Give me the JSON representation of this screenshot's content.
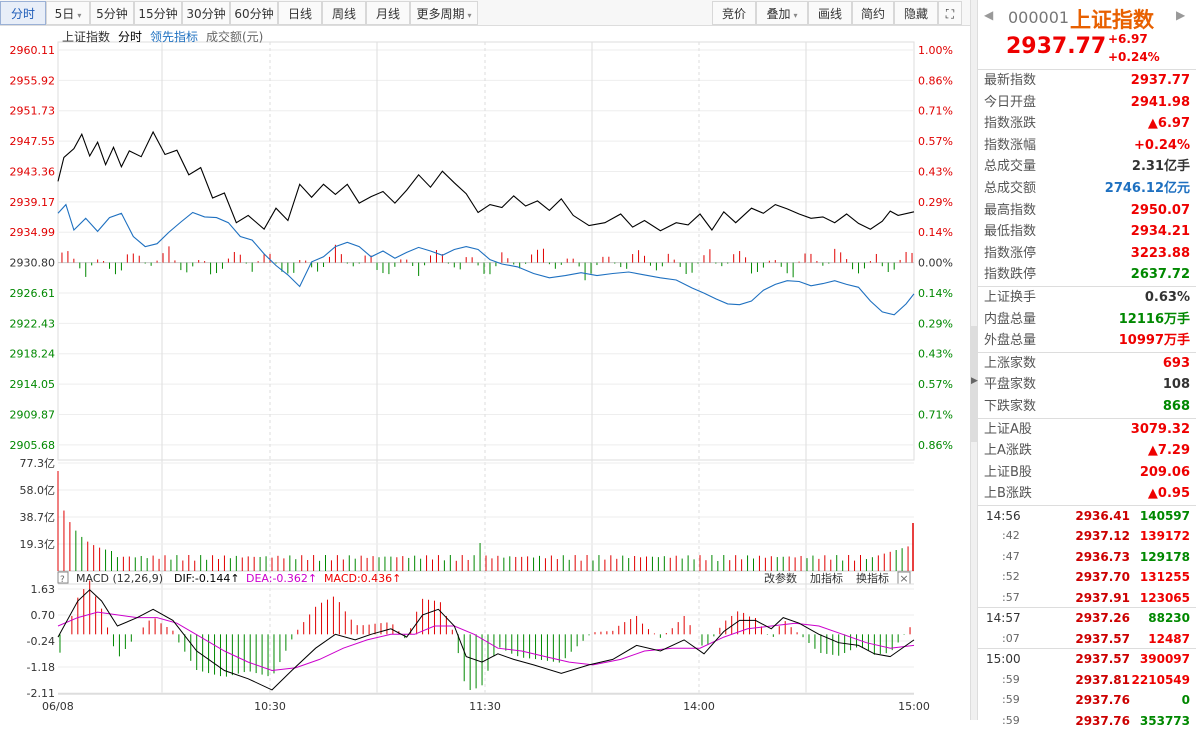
{
  "toolbar": {
    "periods": [
      "分时",
      "5日",
      "5分钟",
      "15分钟",
      "30分钟",
      "60分钟",
      "日线",
      "周线",
      "月线",
      "更多周期"
    ],
    "tools": [
      "竞价",
      "叠加",
      "画线",
      "简约",
      "隐藏"
    ]
  },
  "legend": {
    "name": "上证指数",
    "mode": "分时",
    "leading": "领先指标",
    "volume": "成交额(元)"
  },
  "price_axis": {
    "left": [
      "2960.11",
      "2955.92",
      "2951.73",
      "2947.55",
      "2943.36",
      "2939.17",
      "2934.99",
      "2930.80",
      "2926.61",
      "2922.43",
      "2918.24",
      "2914.05",
      "2909.87",
      "2905.68"
    ],
    "right": [
      "1.00%",
      "0.86%",
      "0.71%",
      "0.57%",
      "0.43%",
      "0.29%",
      "0.14%",
      "0.00%",
      "0.14%",
      "0.29%",
      "0.43%",
      "0.57%",
      "0.71%",
      "0.86%"
    ]
  },
  "volume_axis": [
    "77.3亿",
    "58.0亿",
    "38.7亿",
    "19.3亿"
  ],
  "macd": {
    "title": "MACD (12,26,9)",
    "dif": "DIF:-0.144↑",
    "dea": "DEA:-0.362↑",
    "macd": "MACD:0.436↑",
    "links": [
      "改参数",
      "加指标",
      "换指标"
    ],
    "axis": [
      "1.63",
      "0.70",
      "-0.24",
      "-1.18",
      "-2.11"
    ]
  },
  "time_axis": [
    "06/08",
    "10:30",
    "11:30",
    "14:00",
    "15:00"
  ],
  "quote": {
    "code": "000001",
    "name": "上证指数",
    "price": "2937.77",
    "change": "+6.97",
    "pct": "+0.24%"
  },
  "stats1": [
    {
      "k": "最新指数",
      "v": "2937.77",
      "c": "red"
    },
    {
      "k": "今日开盘",
      "v": "2941.98",
      "c": "red"
    },
    {
      "k": "指数涨跌",
      "v": "▲6.97",
      "c": "red"
    },
    {
      "k": "指数涨幅",
      "v": "+0.24%",
      "c": "red"
    },
    {
      "k": "总成交量",
      "v": "2.31亿手",
      "c": "black"
    },
    {
      "k": "总成交额",
      "v": "2746.12亿元",
      "c": "blue"
    },
    {
      "k": "最高指数",
      "v": "2950.07",
      "c": "red"
    },
    {
      "k": "最低指数",
      "v": "2934.21",
      "c": "red"
    },
    {
      "k": "指数涨停",
      "v": "3223.88",
      "c": "red"
    },
    {
      "k": "指数跌停",
      "v": "2637.72",
      "c": "green"
    }
  ],
  "stats2": [
    {
      "k": "上证换手",
      "v": "0.63%",
      "c": "black"
    },
    {
      "k": "内盘总量",
      "v": "12116万手",
      "c": "green"
    },
    {
      "k": "外盘总量",
      "v": "10997万手",
      "c": "red"
    }
  ],
  "stats3": [
    {
      "k": "上涨家数",
      "v": "693",
      "c": "red"
    },
    {
      "k": "平盘家数",
      "v": "108",
      "c": "black"
    },
    {
      "k": "下跌家数",
      "v": "868",
      "c": "green"
    }
  ],
  "stats4": [
    {
      "k": "上证A股",
      "v": "3079.32",
      "c": "red"
    },
    {
      "k": "上A涨跌",
      "v": "▲7.29",
      "c": "red"
    },
    {
      "k": "上证B股",
      "v": "209.06",
      "c": "red"
    },
    {
      "k": "上B涨跌",
      "v": "▲0.95",
      "c": "red"
    }
  ],
  "ticks": [
    {
      "t": "14:56",
      "sub": false,
      "p": "2936.41",
      "v": "140597",
      "c": "green"
    },
    {
      "t": ":42",
      "sub": true,
      "p": "2937.12",
      "v": "139172",
      "c": "red"
    },
    {
      "t": ":47",
      "sub": true,
      "p": "2936.73",
      "v": "129178",
      "c": "green"
    },
    {
      "t": ":52",
      "sub": true,
      "p": "2937.70",
      "v": "131255",
      "c": "red"
    },
    {
      "t": ":57",
      "sub": true,
      "p": "2937.91",
      "v": "123065",
      "c": "red"
    },
    {
      "t": "14:57",
      "sub": false,
      "p": "2937.26",
      "v": "88230",
      "c": "green"
    },
    {
      "t": ":07",
      "sub": true,
      "p": "2937.57",
      "v": "12487",
      "c": "red"
    },
    {
      "t": "15:00",
      "sub": false,
      "p": "2937.57",
      "v": "390097",
      "c": "red"
    },
    {
      "t": ":59",
      "sub": true,
      "p": "2937.81",
      "v": "2210549",
      "c": "red"
    },
    {
      "t": ":59",
      "sub": true,
      "p": "2937.76",
      "v": "0",
      "c": "green"
    },
    {
      "t": ":59",
      "sub": true,
      "p": "2937.76",
      "v": "353773",
      "c": "green"
    }
  ],
  "colors": {
    "price_line": "#000000",
    "leading_line": "#1e70c0",
    "up": "#e00000",
    "down": "#008800",
    "dif": "#000000",
    "dea": "#cc00cc"
  }
}
